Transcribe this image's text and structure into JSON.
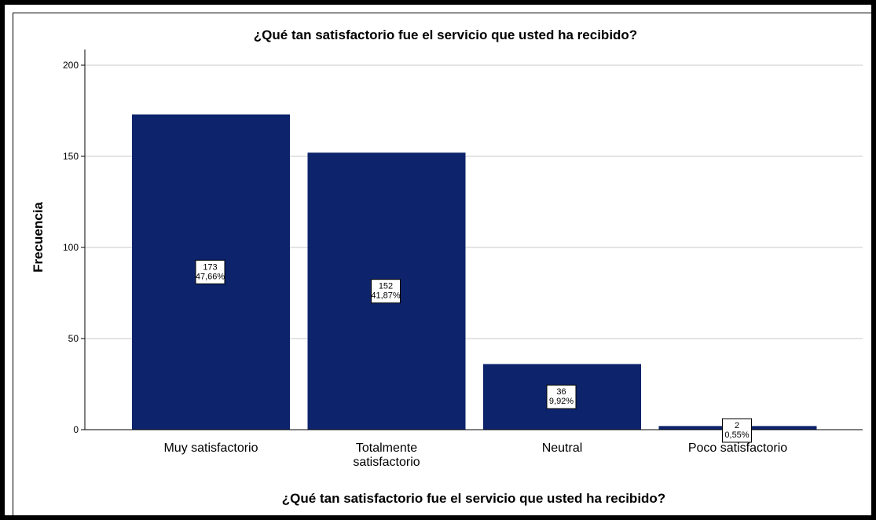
{
  "chart_data": {
    "type": "bar",
    "title": "¿Qué tan satisfactorio fue el servicio que usted ha recibido?",
    "xlabel": "¿Qué tan satisfactorio fue el servicio que usted ha recibido?",
    "ylabel": "Frecuencia",
    "ylim": [
      0,
      200
    ],
    "yticks": [
      "0",
      "50",
      "100",
      "150",
      "200"
    ],
    "grid": true,
    "categories": [
      [
        "Muy satisfactorio"
      ],
      [
        "Totalmente",
        "satisfactorio"
      ],
      [
        "Neutral"
      ],
      [
        "Poco satisfactorio"
      ]
    ],
    "values": [
      173,
      152,
      36,
      2
    ],
    "count_labels": [
      "173",
      "152",
      "36",
      "2"
    ],
    "percent_labels": [
      "47,66%",
      "41,87%",
      "9,92%",
      "0,55%"
    ],
    "bar_color": "#0d236b"
  }
}
